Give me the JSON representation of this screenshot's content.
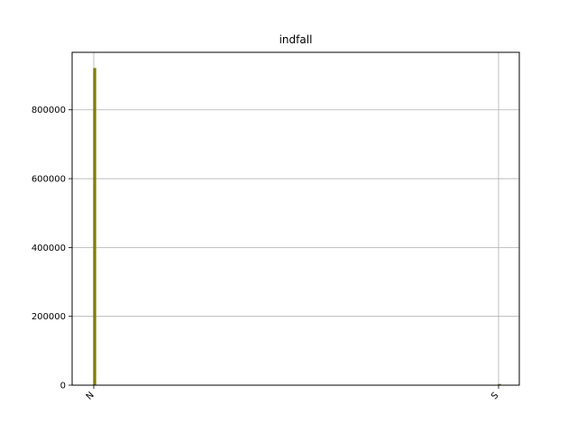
{
  "chart_data": {
    "type": "bar",
    "title": "indfall",
    "xlabel": "",
    "ylabel": "",
    "categories": [
      "N",
      "S"
    ],
    "values": [
      921000,
      3000
    ],
    "ylim": [
      0,
      967000
    ],
    "yticks": [
      0,
      200000,
      400000,
      600000,
      800000
    ],
    "ytick_labels": [
      "0",
      "200000",
      "400000",
      "600000",
      "800000"
    ],
    "xtick_rotation_deg": -45,
    "grid": true,
    "legend": "none",
    "colors": {
      "bar": "#808000",
      "bar_edge": "#6b6b00",
      "grid": "#b0b0b0",
      "axis": "#000000"
    }
  }
}
